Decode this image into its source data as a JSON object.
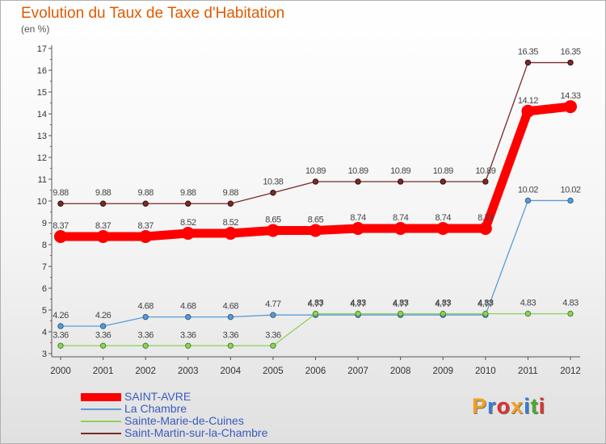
{
  "title": "Evolution du Taux de Taxe d'Habitation",
  "unit": "(en %)",
  "logo": {
    "text": "Proxiti",
    "colors": [
      "#f0a020",
      "#3a7bd5",
      "#e03030",
      "#f0a020",
      "#3a7bd5",
      "#4aa832",
      "#e03030"
    ]
  },
  "chart_data": {
    "type": "line",
    "x": [
      "2000",
      "2001",
      "2002",
      "2003",
      "2004",
      "2005",
      "2006",
      "2007",
      "2008",
      "2009",
      "2010",
      "2011",
      "2012"
    ],
    "ylim": [
      3,
      17
    ],
    "yticks": [
      "3",
      "4",
      "5",
      "6",
      "7",
      "8",
      "9",
      "10",
      "11",
      "12",
      "13",
      "14",
      "15",
      "16",
      "17"
    ],
    "grid": false,
    "legend_position": "bottom-left",
    "series": [
      {
        "name": "SAINT-AVRE",
        "color": "#ff0000",
        "values": [
          8.37,
          8.37,
          8.37,
          8.52,
          8.52,
          8.65,
          8.65,
          8.74,
          8.74,
          8.74,
          8.74,
          14.12,
          14.33
        ],
        "labels": [
          "8.37",
          "8.37",
          "8.37",
          "8.52",
          "8.52",
          "8.65",
          "8.65",
          "8.74",
          "8.74",
          "8.74",
          "8.74",
          "14.12",
          "14.33"
        ]
      },
      {
        "name": "La Chambre",
        "color": "#5b9bd5",
        "values": [
          4.26,
          4.26,
          4.68,
          4.68,
          4.68,
          4.77,
          4.77,
          4.77,
          4.77,
          4.77,
          4.77,
          10.02,
          10.02
        ],
        "labels": [
          "4.26",
          "4.26",
          "4.68",
          "4.68",
          "4.68",
          "4.77",
          "4.77",
          "4.77",
          "4.77",
          "4.77",
          "4.77",
          "10.02",
          "10.02"
        ]
      },
      {
        "name": "Sainte-Marie-de-Cuines",
        "color": "#8ed05a",
        "values": [
          3.36,
          3.36,
          3.36,
          3.36,
          3.36,
          3.36,
          4.83,
          4.83,
          4.83,
          4.83,
          4.83,
          4.83,
          4.83
        ],
        "labels": [
          "3.36",
          "3.36",
          "3.36",
          "3.36",
          "3.36",
          "3.36",
          "4.83",
          "4.83",
          "4.83",
          "4.83",
          "4.83",
          "4.83",
          "4.83"
        ]
      },
      {
        "name": "Saint-Martin-sur-la-Chambre",
        "color": "#7a2a2a",
        "values": [
          9.88,
          9.88,
          9.88,
          9.88,
          9.88,
          10.38,
          10.89,
          10.89,
          10.89,
          10.89,
          10.89,
          16.35,
          16.35
        ],
        "labels": [
          "9.88",
          "9.88",
          "9.88",
          "9.88",
          "9.88",
          "10.38",
          "10.89",
          "10.89",
          "10.89",
          "10.89",
          "10.89",
          "16.35",
          "16.35"
        ]
      }
    ]
  }
}
